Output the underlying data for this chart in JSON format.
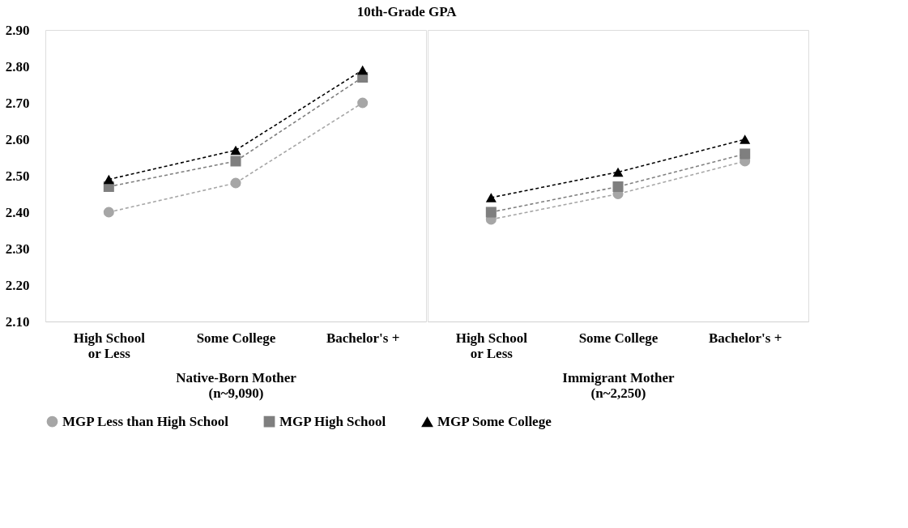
{
  "chart_data": [
    {
      "type": "line",
      "title": "10th-Grade GPA",
      "categories": [
        "High School\nor Less",
        "Some College",
        "Bachelor's +"
      ],
      "xlabel": "Native-Born Mother\n(n~9,090)",
      "ylim": [
        2.1,
        2.9
      ],
      "yticks": [
        {
          "value": 2.1,
          "label": "2.10"
        },
        {
          "value": 2.2,
          "label": "2.20"
        },
        {
          "value": 2.3,
          "label": "2.30"
        },
        {
          "value": 2.4,
          "label": "2.40"
        },
        {
          "value": 2.5,
          "label": "2.50"
        },
        {
          "value": 2.6,
          "label": "2.60"
        },
        {
          "value": 2.7,
          "label": "2.70"
        },
        {
          "value": 2.8,
          "label": "2.80"
        },
        {
          "value": 2.9,
          "label": "2.90"
        }
      ],
      "grid": false,
      "legend": "bottom",
      "line_style": "dashed",
      "series": [
        {
          "name": "MGP Less than High School",
          "color": "#a6a6a6",
          "marker": "circle",
          "values": [
            2.4,
            2.48,
            2.7
          ]
        },
        {
          "name": "MGP High School",
          "color": "#7f7f7f",
          "marker": "square",
          "values": [
            2.47,
            2.54,
            2.77
          ]
        },
        {
          "name": "MGP Some College",
          "color": "#000000",
          "marker": "triangle",
          "values": [
            2.49,
            2.57,
            2.79
          ]
        }
      ]
    },
    {
      "type": "line",
      "categories": [
        "High School\nor Less",
        "Some College",
        "Bachelor's +"
      ],
      "xlabel": "Immigrant Mother\n(n~2,250)",
      "ylim": [
        2.1,
        2.9
      ],
      "tick_labels": "x",
      "grid": false,
      "line_style": "dashed",
      "series": [
        {
          "color": "#a6a6a6",
          "marker": "circle",
          "values": [
            2.38,
            2.45,
            2.54
          ]
        },
        {
          "color": "#7f7f7f",
          "marker": "square",
          "values": [
            2.4,
            2.47,
            2.56
          ]
        },
        {
          "color": "#000000",
          "marker": "triangle",
          "values": [
            2.44,
            2.51,
            2.6
          ]
        }
      ]
    }
  ]
}
